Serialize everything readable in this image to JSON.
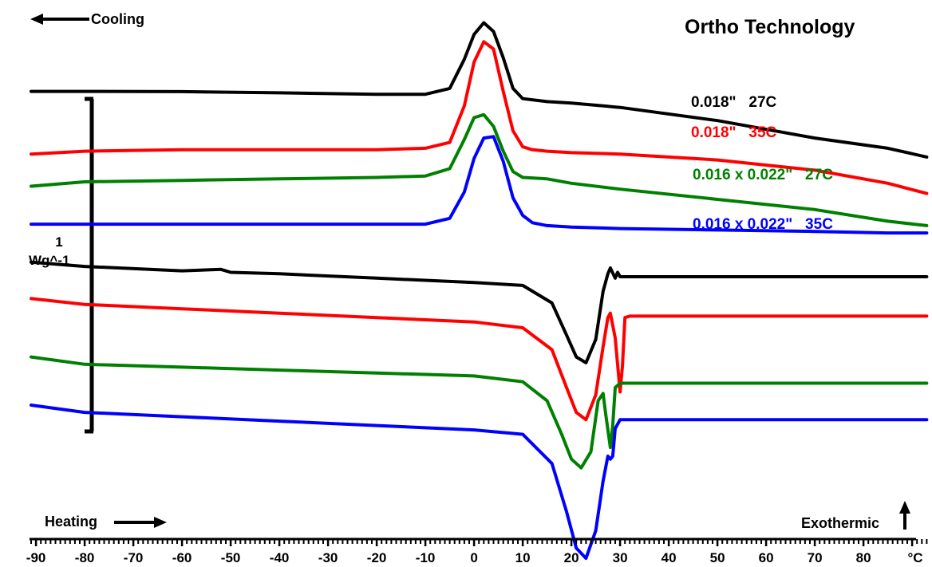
{
  "chart_data": {
    "type": "line",
    "title": "Ortho Technology",
    "xlabel": "°C",
    "xlim": [
      -91,
      93
    ],
    "x_ticks": [
      -90,
      -80,
      -70,
      -60,
      -50,
      -40,
      -30,
      -20,
      -10,
      0,
      10,
      20,
      30,
      40,
      50,
      60,
      70,
      80
    ],
    "scale_bar": {
      "value": "1",
      "unit": "Wg^-1"
    },
    "annotations": {
      "cooling": "Cooling",
      "heating": "Heating",
      "exothermic": "Exothermic"
    },
    "series": [
      {
        "name": "0.018\"   27C",
        "segment": "cooling",
        "color": "#000000",
        "x": [
          -91,
          -80,
          -60,
          -40,
          -20,
          -10,
          -5,
          -2,
          0,
          2,
          4,
          6,
          8,
          10,
          15,
          20,
          30,
          50,
          70,
          85,
          93
        ],
        "y": [
          1.15,
          1.15,
          1.148,
          1.14,
          1.13,
          1.13,
          1.17,
          1.37,
          1.54,
          1.62,
          1.56,
          1.38,
          1.17,
          1.1,
          1.08,
          1.07,
          1.04,
          0.95,
          0.83,
          0.76,
          0.7
        ]
      },
      {
        "name": "0.018\"   35C",
        "segment": "cooling",
        "color": "#ff0000",
        "x": [
          -91,
          -80,
          -60,
          -40,
          -20,
          -10,
          -5,
          -2,
          0,
          2,
          4,
          6,
          8,
          10,
          12,
          15,
          20,
          30,
          50,
          70,
          85,
          93
        ],
        "y": [
          0.72,
          0.74,
          0.75,
          0.75,
          0.75,
          0.76,
          0.8,
          1.05,
          1.35,
          1.49,
          1.44,
          1.15,
          0.88,
          0.77,
          0.75,
          0.74,
          0.73,
          0.72,
          0.68,
          0.61,
          0.52,
          0.45
        ]
      },
      {
        "name": "0.016 x 0.022\"   27C",
        "segment": "cooling",
        "color": "#008000",
        "x": [
          -91,
          -80,
          -60,
          -40,
          -20,
          -10,
          -5,
          -2,
          0,
          2,
          4,
          6,
          8,
          10,
          15,
          20,
          30,
          50,
          70,
          85,
          93
        ],
        "y": [
          0.5,
          0.53,
          0.54,
          0.55,
          0.56,
          0.57,
          0.62,
          0.82,
          0.97,
          0.99,
          0.91,
          0.74,
          0.6,
          0.56,
          0.55,
          0.52,
          0.48,
          0.41,
          0.34,
          0.26,
          0.23
        ]
      },
      {
        "name": "0.016 x 0.022\"   35C",
        "segment": "cooling",
        "color": "#0000ff",
        "x": [
          -91,
          -80,
          -60,
          -40,
          -20,
          -10,
          -5,
          -2,
          0,
          2,
          4,
          6,
          8,
          10,
          12,
          15,
          20,
          30,
          50,
          70,
          85,
          93
        ],
        "y": [
          0.24,
          0.24,
          0.24,
          0.24,
          0.24,
          0.24,
          0.28,
          0.46,
          0.69,
          0.83,
          0.84,
          0.67,
          0.42,
          0.3,
          0.25,
          0.23,
          0.22,
          0.21,
          0.2,
          0.19,
          0.18,
          0.18
        ]
      },
      {
        "name": "0.018\"   27C",
        "segment": "heating",
        "color": "#000000",
        "x": [
          -91,
          -80,
          -60,
          -52,
          -50,
          -40,
          -20,
          0,
          10,
          16,
          19,
          21,
          23,
          25,
          26.5,
          27.5,
          28,
          29,
          29.5,
          30,
          32,
          40,
          60,
          93
        ],
        "y": [
          -0.02,
          -0.05,
          -0.08,
          -0.07,
          -0.09,
          -0.1,
          -0.13,
          -0.16,
          -0.18,
          -0.3,
          -0.52,
          -0.67,
          -0.71,
          -0.55,
          -0.22,
          -0.1,
          -0.06,
          -0.13,
          -0.09,
          -0.12,
          -0.12,
          -0.12,
          -0.12,
          -0.12
        ]
      },
      {
        "name": "0.018\"   35C",
        "segment": "heating",
        "color": "#ff0000",
        "x": [
          -91,
          -80,
          -60,
          -40,
          -20,
          0,
          10,
          16,
          19,
          21,
          23,
          25,
          26.5,
          27.5,
          28,
          29,
          30,
          30.5,
          31,
          32,
          40,
          60,
          93
        ],
        "y": [
          -0.27,
          -0.31,
          -0.34,
          -0.37,
          -0.4,
          -0.43,
          -0.47,
          -0.62,
          -0.88,
          -1.05,
          -1.1,
          -0.93,
          -0.6,
          -0.4,
          -0.37,
          -0.54,
          -0.91,
          -0.73,
          -0.4,
          -0.39,
          -0.39,
          -0.39,
          -0.39
        ]
      },
      {
        "name": "0.016 x 0.022\"   27C",
        "segment": "heating",
        "color": "#008000",
        "x": [
          -91,
          -80,
          -60,
          -40,
          -20,
          0,
          10,
          15,
          18,
          20,
          22,
          24,
          25.5,
          26.5,
          27,
          28,
          28.5,
          29,
          30,
          40,
          60,
          93
        ],
        "y": [
          -0.67,
          -0.72,
          -0.74,
          -0.76,
          -0.78,
          -0.8,
          -0.84,
          -0.97,
          -1.2,
          -1.37,
          -1.43,
          -1.32,
          -0.97,
          -0.92,
          -1.05,
          -1.29,
          -1.14,
          -0.88,
          -0.85,
          -0.85,
          -0.85,
          -0.85
        ]
      },
      {
        "name": "0.016 x 0.022\"   35C",
        "segment": "heating",
        "color": "#0000ff",
        "x": [
          -91,
          -80,
          -60,
          -40,
          -20,
          0,
          10,
          16,
          19,
          21,
          23,
          25,
          26.5,
          27.5,
          28,
          28.5,
          29,
          30,
          40,
          60,
          93
        ],
        "y": [
          -1.0,
          -1.05,
          -1.08,
          -1.11,
          -1.14,
          -1.17,
          -1.2,
          -1.4,
          -1.73,
          -1.98,
          -2.05,
          -1.86,
          -1.52,
          -1.35,
          -1.37,
          -1.35,
          -1.16,
          -1.1,
          -1.1,
          -1.1,
          -1.1
        ]
      }
    ]
  }
}
